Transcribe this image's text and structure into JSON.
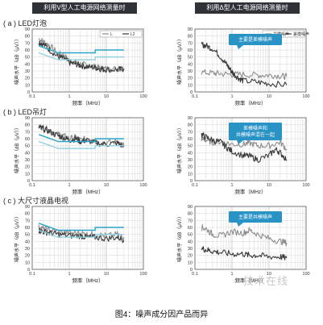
{
  "headers": {
    "left": "利用V型人工电源网络测量时",
    "right": "利用Δ型人工电源网络测量时"
  },
  "sections": [
    {
      "label": "( a ) LED灯泡"
    },
    {
      "label": "( b ) LED吊灯"
    },
    {
      "label": "( c ) 大尺寸液晶电视"
    }
  ],
  "caption": "图4：噪声成分因产品而异",
  "watermark": "技术在线",
  "colors": {
    "limit": "#2aa4c9",
    "limit_light": "#8fd0e4",
    "trace_dark": "#3a3a3a",
    "trace_light": "#8c8c8c",
    "callout": "#2a93c6",
    "header_bg": "#2f3338"
  },
  "chart_data": [
    {
      "type": "line",
      "panel": "a-left",
      "xlabel": "频率（MHz）",
      "ylabel": "噪声水平（dB（μV））",
      "x_scale": "log",
      "xlim": [
        0.1,
        100
      ],
      "ylim": [
        0,
        90
      ],
      "xticks": [
        "0.1",
        "1",
        "10",
        "100"
      ],
      "yticks": [
        "0",
        "10",
        "20",
        "30",
        "40",
        "50",
        "60",
        "70",
        "80",
        "90"
      ],
      "legend": [
        "L",
        "L2"
      ],
      "series": [
        {
          "name": "L",
          "color": "#8c8c8c",
          "noisy": true,
          "x": [
            0.15,
            0.2,
            0.3,
            0.5,
            0.7,
            1,
            1.5,
            2,
            3,
            5,
            7,
            10,
            20,
            30
          ],
          "y": [
            76,
            72,
            66,
            55,
            52,
            45,
            42,
            40,
            38,
            36,
            34,
            33,
            33,
            34
          ]
        },
        {
          "name": "L2",
          "color": "#3a3a3a",
          "noisy": true,
          "x": [
            0.15,
            0.2,
            0.3,
            0.5,
            0.7,
            1,
            1.5,
            2,
            3,
            5,
            7,
            10,
            20,
            30
          ],
          "y": [
            72,
            68,
            60,
            50,
            48,
            42,
            40,
            38,
            36,
            35,
            33,
            32,
            32,
            33
          ]
        },
        {
          "color": "#2aa4c9",
          "x": [
            0.15,
            0.5,
            0.5,
            5,
            5,
            30
          ],
          "y": [
            66,
            56,
            56,
            56,
            60,
            60
          ]
        },
        {
          "color": "#8fd0e4",
          "x": [
            0.15,
            0.5,
            0.5,
            5,
            5,
            30
          ],
          "y": [
            56,
            46,
            46,
            46,
            50,
            50
          ]
        }
      ]
    },
    {
      "type": "line",
      "panel": "a-right",
      "xlabel": "频率（MHz）",
      "ylabel": "噪声水平（dB（μV））",
      "x_scale": "log",
      "xlim": [
        0.1,
        100
      ],
      "ylim": [
        0,
        90
      ],
      "xticks": [
        "0.1",
        "1",
        "10",
        "100"
      ],
      "yticks": [
        "0",
        "10",
        "20",
        "30",
        "40",
        "50",
        "60",
        "70",
        "80",
        "90"
      ],
      "legend": [
        "共模噪声",
        "差模噪声"
      ],
      "callout": "主要是差模噪声",
      "series": [
        {
          "name": "共模噪声",
          "color": "#8c8c8c",
          "noisy": true,
          "x": [
            0.15,
            0.3,
            0.5,
            1,
            2,
            5,
            10,
            20,
            30
          ],
          "y": [
            28,
            27,
            26,
            25,
            25,
            24,
            24,
            23,
            22
          ]
        },
        {
          "name": "差模噪声",
          "color": "#3a3a3a",
          "noisy": true,
          "x": [
            0.15,
            0.2,
            0.3,
            0.5,
            0.7,
            0.9,
            1.1,
            1.5,
            2,
            5,
            10,
            30
          ],
          "y": [
            68,
            66,
            62,
            50,
            40,
            32,
            26,
            20,
            16,
            14,
            12,
            10
          ]
        }
      ]
    },
    {
      "type": "line",
      "panel": "b-left",
      "xlabel": "频率（MHz）",
      "ylabel": "噪声水平（dB（μV））",
      "x_scale": "log",
      "xlim": [
        0.1,
        100
      ],
      "ylim": [
        0,
        90
      ],
      "xticks": [
        "0.1",
        "1",
        "10",
        "100"
      ],
      "yticks": [
        "0",
        "10",
        "20",
        "30",
        "40",
        "50",
        "60",
        "70",
        "80",
        "90"
      ],
      "series": [
        {
          "color": "#8c8c8c",
          "noisy": true,
          "x": [
            0.15,
            0.2,
            0.3,
            0.5,
            0.7,
            1,
            1.5,
            2,
            3,
            5,
            10,
            20,
            30
          ],
          "y": [
            78,
            76,
            72,
            66,
            64,
            60,
            62,
            58,
            60,
            56,
            54,
            56,
            50
          ]
        },
        {
          "color": "#3a3a3a",
          "noisy": true,
          "x": [
            0.15,
            0.2,
            0.3,
            0.5,
            0.7,
            1,
            1.5,
            2,
            3,
            5,
            10,
            20,
            30
          ],
          "y": [
            76,
            74,
            70,
            64,
            62,
            58,
            60,
            56,
            58,
            54,
            52,
            54,
            48
          ]
        },
        {
          "color": "#2aa4c9",
          "x": [
            0.15,
            0.5,
            0.5,
            5,
            5,
            30
          ],
          "y": [
            66,
            56,
            56,
            56,
            60,
            60
          ]
        },
        {
          "color": "#8fd0e4",
          "x": [
            0.15,
            0.5,
            0.5,
            5,
            5,
            30
          ],
          "y": [
            56,
            46,
            46,
            46,
            50,
            50
          ]
        }
      ]
    },
    {
      "type": "line",
      "panel": "b-right",
      "xlabel": "频率（MHz）",
      "ylabel": "噪声水平（dB（μV））",
      "x_scale": "log",
      "xlim": [
        0.1,
        100
      ],
      "ylim": [
        0,
        90
      ],
      "xticks": [
        "0.1",
        "1",
        "10",
        "100"
      ],
      "yticks": [
        "0",
        "10",
        "20",
        "30",
        "40",
        "50",
        "60",
        "70",
        "80",
        "90"
      ],
      "callout": "差模噪声和\n共模噪声混在一起",
      "series": [
        {
          "color": "#8c8c8c",
          "noisy": true,
          "x": [
            0.15,
            0.2,
            0.3,
            0.5,
            1,
            2,
            3,
            5,
            10,
            20,
            30
          ],
          "y": [
            60,
            58,
            55,
            56,
            52,
            52,
            54,
            50,
            50,
            55,
            45
          ]
        },
        {
          "color": "#3a3a3a",
          "noisy": true,
          "x": [
            0.15,
            0.2,
            0.3,
            0.5,
            0.7,
            1,
            2,
            3,
            5,
            10,
            15,
            20,
            30
          ],
          "y": [
            66,
            62,
            58,
            55,
            48,
            42,
            36,
            35,
            30,
            36,
            45,
            40,
            30
          ]
        }
      ]
    },
    {
      "type": "line",
      "panel": "c-left",
      "xlabel": "频率（MHz）",
      "ylabel": "噪声水平（dB（μV））",
      "x_scale": "log",
      "xlim": [
        0.1,
        100
      ],
      "ylim": [
        0,
        90
      ],
      "xticks": [
        "0.1",
        "1",
        "10",
        "100"
      ],
      "yticks": [
        "0",
        "10",
        "20",
        "30",
        "40",
        "50",
        "60",
        "70",
        "80",
        "90"
      ],
      "series": [
        {
          "color": "#8c8c8c",
          "noisy": true,
          "x": [
            0.15,
            0.2,
            0.3,
            0.5,
            1,
            2,
            3,
            5,
            10,
            20,
            30
          ],
          "y": [
            60,
            58,
            56,
            54,
            52,
            52,
            50,
            50,
            48,
            50,
            46
          ]
        },
        {
          "color": "#3a3a3a",
          "noisy": true,
          "x": [
            0.15,
            0.2,
            0.3,
            0.5,
            1,
            2,
            3,
            5,
            10,
            20,
            30
          ],
          "y": [
            56,
            54,
            52,
            50,
            48,
            48,
            46,
            46,
            44,
            46,
            42
          ]
        },
        {
          "color": "#2aa4c9",
          "x": [
            0.15,
            0.5,
            0.5,
            5,
            5,
            30
          ],
          "y": [
            66,
            56,
            56,
            56,
            60,
            60
          ]
        },
        {
          "color": "#8fd0e4",
          "x": [
            0.15,
            0.5,
            0.5,
            5,
            5,
            30
          ],
          "y": [
            56,
            46,
            46,
            46,
            50,
            50
          ]
        }
      ]
    },
    {
      "type": "line",
      "panel": "c-right",
      "xlabel": "频率（MHz）",
      "ylabel": "噪声水平（dB（μV））",
      "x_scale": "log",
      "xlim": [
        0.1,
        100
      ],
      "ylim": [
        0,
        90
      ],
      "xticks": [
        "0.1",
        "1",
        "10",
        "100"
      ],
      "yticks": [
        "0",
        "10",
        "20",
        "30",
        "40",
        "50",
        "60",
        "70",
        "80",
        "90"
      ],
      "callout": "主要是共模噪声",
      "series": [
        {
          "color": "#8c8c8c",
          "noisy": true,
          "x": [
            0.15,
            0.2,
            0.3,
            0.5,
            1,
            2,
            3,
            5,
            10,
            20,
            30
          ],
          "y": [
            60,
            58,
            50,
            48,
            54,
            52,
            56,
            50,
            44,
            40,
            38
          ]
        },
        {
          "color": "#3a3a3a",
          "noisy": true,
          "x": [
            0.15,
            0.2,
            0.3,
            0.5,
            1,
            2,
            3,
            5,
            10,
            20,
            30
          ],
          "y": [
            30,
            28,
            26,
            24,
            22,
            22,
            20,
            20,
            18,
            18,
            16
          ]
        }
      ]
    }
  ]
}
